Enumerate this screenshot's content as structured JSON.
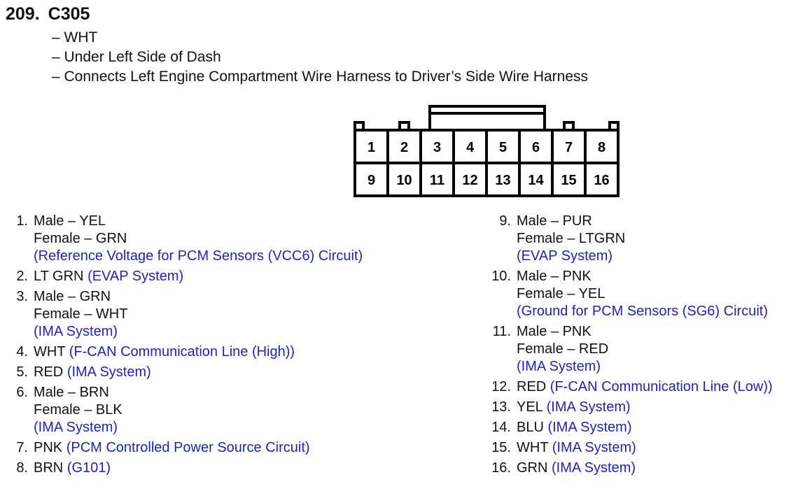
{
  "header": {
    "number": "209.",
    "connector": "C305",
    "details": [
      "– WHT",
      "– Under Left Side of Dash",
      "– Connects Left Engine Compartment Wire Harness to Driver’s Side Wire Harness"
    ]
  },
  "connector_pins": {
    "top_row": [
      "1",
      "2",
      "3",
      "4",
      "5",
      "6",
      "7",
      "8"
    ],
    "bottom_row": [
      "9",
      "10",
      "11",
      "12",
      "13",
      "14",
      "15",
      "16"
    ]
  },
  "colors": {
    "description": "#2222bb",
    "text": "#111111"
  },
  "pins_left": [
    {
      "num": "1.",
      "lines": [
        "Male – YEL",
        "Female – GRN"
      ],
      "desc": "(Reference Voltage for PCM Sensors (VCC6) Circuit)",
      "desc_newline": true
    },
    {
      "num": "2.",
      "lines": [
        "LT GRN"
      ],
      "desc": "(EVAP System)",
      "desc_newline": false
    },
    {
      "num": "3.",
      "lines": [
        "Male – GRN",
        "Female – WHT"
      ],
      "desc": "(IMA System)",
      "desc_newline": true
    },
    {
      "num": "4.",
      "lines": [
        "WHT"
      ],
      "desc": "(F-CAN Communication Line (High))",
      "desc_newline": false
    },
    {
      "num": "5.",
      "lines": [
        "RED"
      ],
      "desc": "(IMA System)",
      "desc_newline": false
    },
    {
      "num": "6.",
      "lines": [
        "Male – BRN",
        "Female – BLK"
      ],
      "desc": "(IMA System)",
      "desc_newline": true
    },
    {
      "num": "7.",
      "lines": [
        "PNK"
      ],
      "desc": "(PCM Controlled Power Source Circuit)",
      "desc_newline": false
    },
    {
      "num": "8.",
      "lines": [
        "BRN"
      ],
      "desc": "(G101)",
      "desc_newline": false
    }
  ],
  "pins_right": [
    {
      "num": "9.",
      "lines": [
        "Male – PUR",
        "Female – LTGRN"
      ],
      "desc": "(EVAP System)",
      "desc_newline": true
    },
    {
      "num": "10.",
      "lines": [
        "Male – PNK",
        "Female – YEL"
      ],
      "desc": "(Ground for PCM Sensors (SG6) Circuit)",
      "desc_newline": true
    },
    {
      "num": "11.",
      "lines": [
        "Male – PNK",
        "Female – RED"
      ],
      "desc": "(IMA System)",
      "desc_newline": true
    },
    {
      "num": "12.",
      "lines": [
        "RED"
      ],
      "desc": "(F-CAN Communication Line (Low))",
      "desc_newline": false
    },
    {
      "num": "13.",
      "lines": [
        "YEL"
      ],
      "desc": "(IMA System)",
      "desc_newline": false
    },
    {
      "num": "14.",
      "lines": [
        "BLU"
      ],
      "desc": "(IMA System)",
      "desc_newline": false
    },
    {
      "num": "15.",
      "lines": [
        "WHT"
      ],
      "desc": "(IMA System)",
      "desc_newline": false
    },
    {
      "num": "16.",
      "lines": [
        "GRN"
      ],
      "desc": "(IMA System)",
      "desc_newline": false
    }
  ]
}
